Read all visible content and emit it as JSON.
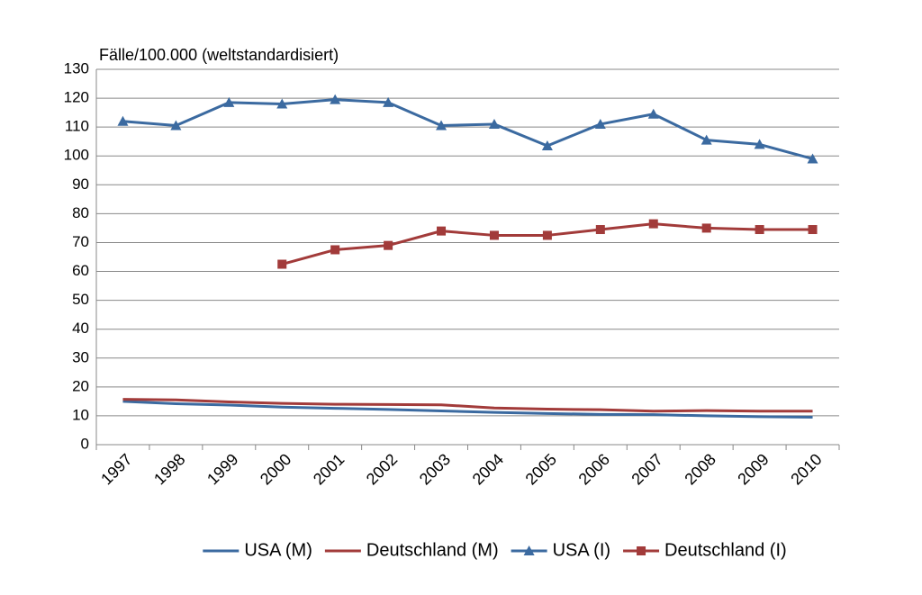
{
  "chart_data": {
    "type": "line",
    "y_axis_label": "Fälle/100.000 (weltstandardisiert)",
    "categories": [
      "1997",
      "1998",
      "1999",
      "2000",
      "2001",
      "2002",
      "2003",
      "2004",
      "2005",
      "2006",
      "2007",
      "2008",
      "2009",
      "2010"
    ],
    "series": [
      {
        "name": "USA (M)",
        "color": "#3b6aa0",
        "marker": "none",
        "values": [
          15,
          14.2,
          13.7,
          13,
          12.6,
          12.2,
          11.7,
          11.2,
          10.8,
          10.5,
          10.4,
          10,
          9.7,
          9.5
        ]
      },
      {
        "name": "Deutschland (M)",
        "color": "#a23b3a",
        "marker": "none",
        "values": [
          15.7,
          15.5,
          14.8,
          14.3,
          14,
          13.9,
          13.8,
          12.7,
          12.3,
          12.1,
          11.6,
          11.8,
          11.6,
          11.6
        ]
      },
      {
        "name": "USA (I)",
        "color": "#3b6aa0",
        "marker": "triangle",
        "values": [
          112,
          110.5,
          118.5,
          118,
          119.5,
          118.5,
          110.5,
          111,
          103.5,
          111,
          114.5,
          105.5,
          104,
          99
        ]
      },
      {
        "name": "Deutschland (I)",
        "color": "#a23b3a",
        "marker": "square",
        "values": [
          null,
          null,
          null,
          62.5,
          67.5,
          69,
          74,
          72.5,
          72.5,
          74.5,
          76.5,
          75,
          74.5,
          74.5
        ]
      }
    ],
    "ylim": [
      0,
      130
    ],
    "yticks": [
      0,
      10,
      20,
      30,
      40,
      50,
      60,
      70,
      80,
      90,
      100,
      110,
      120,
      130
    ],
    "grid": true,
    "legend": "bottom"
  }
}
